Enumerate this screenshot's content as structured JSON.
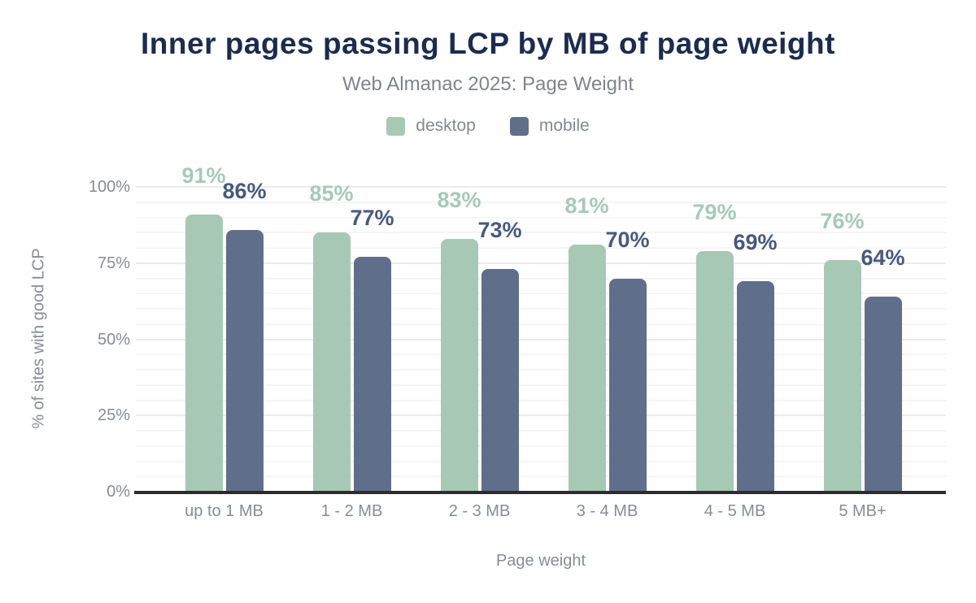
{
  "title": "Inner pages passing LCP by MB of page weight",
  "subtitle": "Web Almanac 2025: Page Weight",
  "legend": [
    {
      "label": "desktop",
      "color": "#a7c8b5"
    },
    {
      "label": "mobile",
      "color": "#5f6e8b"
    }
  ],
  "colors": {
    "title": "#1b2c4e",
    "desktop_bar": "#a7c8b5",
    "desktop_label": "#a6cab7",
    "mobile_bar": "#5f6e8b",
    "mobile_label": "#48597c",
    "axis_line": "#2d2d2d",
    "tick_text": "#878c95"
  },
  "chart_data": {
    "type": "bar",
    "categories": [
      "up to 1 MB",
      "1 - 2 MB",
      "2 - 3 MB",
      "3 - 4 MB",
      "4 - 5 MB",
      "5 MB+"
    ],
    "series": [
      {
        "name": "desktop",
        "values": [
          91,
          85,
          83,
          81,
          79,
          76
        ],
        "color": "#a7c8b5",
        "label_color": "#a6cab7"
      },
      {
        "name": "mobile",
        "values": [
          86,
          77,
          73,
          70,
          69,
          64
        ],
        "color": "#5f6e8b",
        "label_color": "#48597c"
      }
    ],
    "data_label_suffix": "%",
    "title": "Inner pages passing LCP by MB of page weight",
    "subtitle": "Web Almanac 2025: Page Weight",
    "xlabel": "Page weight",
    "ylabel": "% of sites with good LCP",
    "yticks": [
      "0%",
      "25%",
      "50%",
      "75%",
      "100%"
    ],
    "ytick_values": [
      0,
      25,
      50,
      75,
      100
    ],
    "ylim": [
      0,
      100
    ],
    "grid": "horizontal, minor every 5%, major every 25%",
    "legend_position": "top center"
  }
}
